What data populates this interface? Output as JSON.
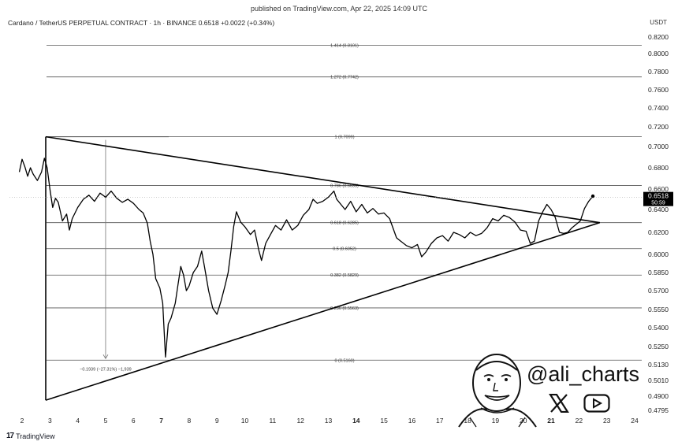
{
  "header": {
    "published": "published on TradingView.com, Apr 22, 2025 14:09 UTC",
    "symbol": "Cardano / TetherUS PERPETUAL CONTRACT · 1h · BINANCE",
    "price": "0.6518",
    "change": "+0.0022 (+0.34%)",
    "currency": "USDT"
  },
  "price_tag": {
    "value": "0.6518",
    "timer": "50:59"
  },
  "brand": {
    "name": "TradingView",
    "logo": "17"
  },
  "watermark": {
    "handle": "@ali_charts",
    "icons": [
      "x-logo-icon",
      "youtube-icon"
    ]
  },
  "colors": {
    "line": "#000000",
    "fib": "#555555",
    "tag_bg": "#000000",
    "tag_text": "#ffffff"
  },
  "chart_data": {
    "type": "line",
    "title": "",
    "xlabel": "",
    "ylabel": "",
    "ylim": [
      0.4795,
      0.82
    ],
    "x_ticks": [
      "2",
      "3",
      "4",
      "5",
      "6",
      "7",
      "8",
      "9",
      "10",
      "11",
      "12",
      "13",
      "14",
      "15",
      "16",
      "17",
      "18",
      "19",
      "20",
      "21",
      "22",
      "23",
      "24"
    ],
    "x_ticks_bold": [
      "7",
      "14",
      "21"
    ],
    "y_ticks": [
      "0.8200",
      "0.8000",
      "0.7800",
      "0.7600",
      "0.7400",
      "0.7200",
      "0.7000",
      "0.6800",
      "0.6600",
      "0.6400",
      "0.6200",
      "0.6000",
      "0.5850",
      "0.5700",
      "0.5550",
      "0.5400",
      "0.5250",
      "0.5130",
      "0.5010",
      "0.4900",
      "0.4795"
    ],
    "fib_levels": [
      {
        "label": "1.414 (0.8101)",
        "value": 0.8101
      },
      {
        "label": "1.272 (0.7742)",
        "value": 0.7742
      },
      {
        "label": "1 (0.7099)",
        "value": 0.7099
      },
      {
        "label": "0.786 (0.6633)",
        "value": 0.6633
      },
      {
        "label": "0.618 (0.6285)",
        "value": 0.6285
      },
      {
        "label": "0.5 (0.6052)",
        "value": 0.6052
      },
      {
        "label": "0.382 (0.5829)",
        "value": 0.5829
      },
      {
        "label": "0.236 (0.5563)",
        "value": 0.5563
      },
      {
        "label": "0 (0.5160)",
        "value": 0.516
      }
    ],
    "measure_label": "−0.1939 (−27.31%) −1,939",
    "triangle": {
      "upper": [
        [
          2.85,
          0.7099
        ],
        [
          22.75,
          0.6285
        ]
      ],
      "lower": [
        [
          2.85,
          0.487
        ],
        [
          22.75,
          0.6285
        ]
      ],
      "left_edge": [
        [
          2.85,
          0.7099
        ],
        [
          2.85,
          0.487
        ]
      ]
    },
    "series": [
      {
        "values": [
          [
            1.9,
            0.676
          ],
          [
            2.0,
            0.688
          ],
          [
            2.1,
            0.681
          ],
          [
            2.2,
            0.672
          ],
          [
            2.3,
            0.68
          ],
          [
            2.4,
            0.674
          ],
          [
            2.55,
            0.668
          ],
          [
            2.7,
            0.676
          ],
          [
            2.8,
            0.689
          ],
          [
            2.9,
            0.68
          ],
          [
            3.0,
            0.66
          ],
          [
            3.1,
            0.642
          ],
          [
            3.2,
            0.651
          ],
          [
            3.3,
            0.647
          ],
          [
            3.45,
            0.63
          ],
          [
            3.6,
            0.636
          ],
          [
            3.7,
            0.622
          ],
          [
            3.8,
            0.632
          ],
          [
            4.0,
            0.642
          ],
          [
            4.2,
            0.65
          ],
          [
            4.4,
            0.654
          ],
          [
            4.6,
            0.648
          ],
          [
            4.8,
            0.656
          ],
          [
            5.0,
            0.652
          ],
          [
            5.2,
            0.658
          ],
          [
            5.4,
            0.651
          ],
          [
            5.6,
            0.647
          ],
          [
            5.8,
            0.65
          ],
          [
            6.0,
            0.646
          ],
          [
            6.2,
            0.64
          ],
          [
            6.35,
            0.637
          ],
          [
            6.5,
            0.628
          ],
          [
            6.6,
            0.612
          ],
          [
            6.7,
            0.6
          ],
          [
            6.8,
            0.58
          ],
          [
            6.95,
            0.572
          ],
          [
            7.05,
            0.56
          ],
          [
            7.15,
            0.518
          ],
          [
            7.25,
            0.543
          ],
          [
            7.35,
            0.548
          ],
          [
            7.5,
            0.56
          ],
          [
            7.6,
            0.575
          ],
          [
            7.7,
            0.59
          ],
          [
            7.8,
            0.583
          ],
          [
            7.9,
            0.57
          ],
          [
            8.0,
            0.574
          ],
          [
            8.15,
            0.585
          ],
          [
            8.3,
            0.59
          ],
          [
            8.45,
            0.603
          ],
          [
            8.55,
            0.59
          ],
          [
            8.7,
            0.57
          ],
          [
            8.85,
            0.556
          ],
          [
            9.0,
            0.551
          ],
          [
            9.15,
            0.562
          ],
          [
            9.3,
            0.575
          ],
          [
            9.4,
            0.585
          ],
          [
            9.5,
            0.603
          ],
          [
            9.6,
            0.625
          ],
          [
            9.7,
            0.638
          ],
          [
            9.85,
            0.629
          ],
          [
            10.0,
            0.625
          ],
          [
            10.2,
            0.618
          ],
          [
            10.35,
            0.622
          ],
          [
            10.5,
            0.604
          ],
          [
            10.6,
            0.595
          ],
          [
            10.75,
            0.61
          ],
          [
            10.9,
            0.617
          ],
          [
            11.1,
            0.626
          ],
          [
            11.3,
            0.622
          ],
          [
            11.5,
            0.631
          ],
          [
            11.7,
            0.622
          ],
          [
            11.9,
            0.626
          ],
          [
            12.1,
            0.635
          ],
          [
            12.3,
            0.64
          ],
          [
            12.45,
            0.65
          ],
          [
            12.6,
            0.646
          ],
          [
            12.8,
            0.648
          ],
          [
            13.0,
            0.652
          ],
          [
            13.2,
            0.658
          ],
          [
            13.3,
            0.65
          ],
          [
            13.45,
            0.645
          ],
          [
            13.6,
            0.64
          ],
          [
            13.8,
            0.648
          ],
          [
            14.0,
            0.638
          ],
          [
            14.2,
            0.645
          ],
          [
            14.4,
            0.637
          ],
          [
            14.6,
            0.641
          ],
          [
            14.8,
            0.636
          ],
          [
            15.0,
            0.637
          ],
          [
            15.2,
            0.632
          ],
          [
            15.45,
            0.615
          ],
          [
            15.6,
            0.612
          ],
          [
            15.8,
            0.608
          ],
          [
            16.0,
            0.606
          ],
          [
            16.2,
            0.609
          ],
          [
            16.35,
            0.598
          ],
          [
            16.5,
            0.602
          ],
          [
            16.7,
            0.61
          ],
          [
            16.9,
            0.615
          ],
          [
            17.1,
            0.617
          ],
          [
            17.3,
            0.612
          ],
          [
            17.5,
            0.62
          ],
          [
            17.7,
            0.618
          ],
          [
            17.9,
            0.615
          ],
          [
            18.1,
            0.62
          ],
          [
            18.3,
            0.617
          ],
          [
            18.5,
            0.619
          ],
          [
            18.7,
            0.624
          ],
          [
            18.9,
            0.632
          ],
          [
            19.1,
            0.63
          ],
          [
            19.3,
            0.635
          ],
          [
            19.5,
            0.633
          ],
          [
            19.7,
            0.629
          ],
          [
            19.9,
            0.622
          ],
          [
            20.1,
            0.621
          ],
          [
            20.25,
            0.61
          ],
          [
            20.4,
            0.612
          ],
          [
            20.55,
            0.63
          ],
          [
            20.7,
            0.638
          ],
          [
            20.85,
            0.645
          ],
          [
            21.0,
            0.64
          ],
          [
            21.15,
            0.633
          ],
          [
            21.3,
            0.62
          ],
          [
            21.45,
            0.619
          ],
          [
            21.6,
            0.62
          ],
          [
            21.75,
            0.624
          ],
          [
            21.9,
            0.627
          ],
          [
            22.05,
            0.63
          ],
          [
            22.2,
            0.641
          ],
          [
            22.35,
            0.648
          ],
          [
            22.5,
            0.653
          ]
        ]
      }
    ]
  }
}
